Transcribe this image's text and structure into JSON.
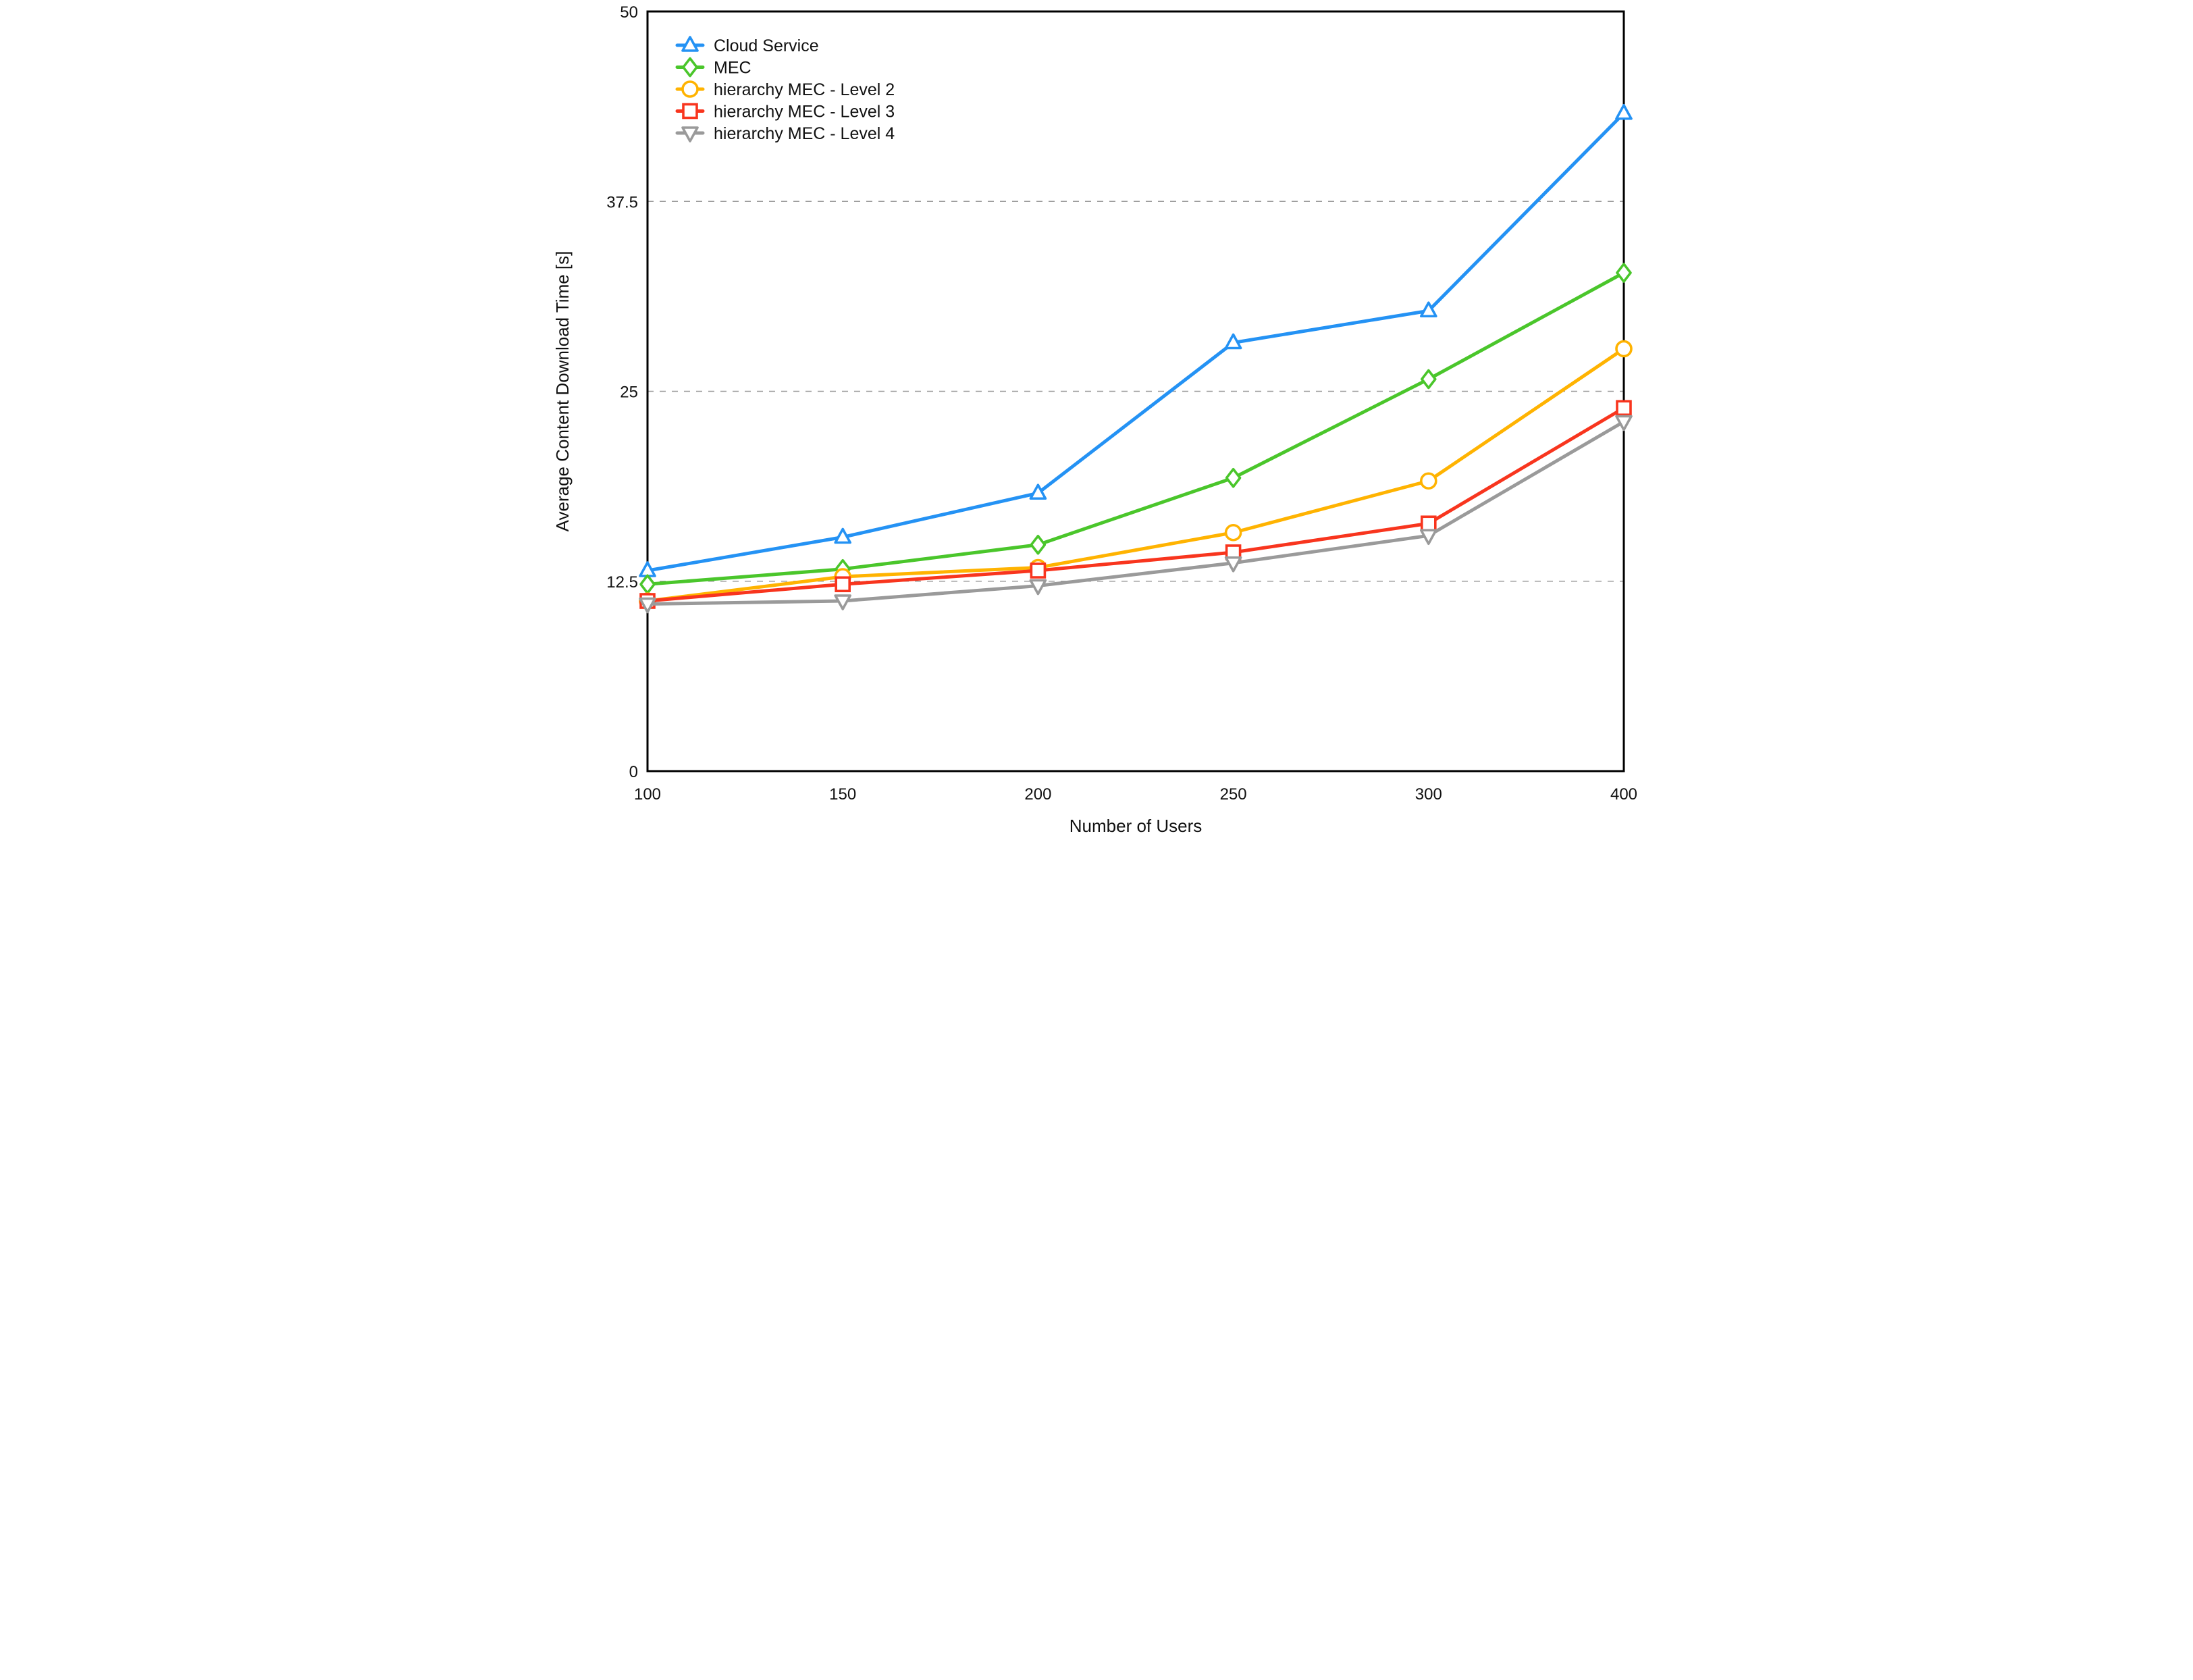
{
  "chart_data": {
    "type": "line",
    "title": "",
    "xlabel": "Number of Users",
    "ylabel": "Average Content Download Time  [s]",
    "x_categories": [
      "100",
      "150",
      "200",
      "250",
      "300",
      "400"
    ],
    "y_ticks": [
      0,
      12.5,
      25,
      37.5,
      50
    ],
    "y_tick_labels": [
      "0",
      "12.5",
      "25",
      "37.5",
      "50"
    ],
    "ylim": [
      0,
      50
    ],
    "grid": "horizontal dashed gridlines at 12.5, 25 and 37.5",
    "legend_position": "top-left inside plot",
    "axis_color": "#000000",
    "gridline_color": "#9b9b9b",
    "series": [
      {
        "name": "Cloud Service",
        "color": "#2492f4",
        "marker": "triangle-up",
        "values": [
          13.2,
          15.4,
          18.3,
          28.2,
          30.3,
          43.3
        ]
      },
      {
        "name": "MEC",
        "color": "#4ac62b",
        "marker": "diamond",
        "values": [
          12.3,
          13.3,
          14.9,
          19.3,
          25.8,
          32.8
        ]
      },
      {
        "name": "hierarchy MEC - Level 2",
        "color": "#ffb301",
        "marker": "circle",
        "values": [
          11.2,
          12.8,
          13.4,
          15.7,
          19.1,
          27.8
        ]
      },
      {
        "name": "hierarchy MEC - Level 3",
        "color": "#f8351e",
        "marker": "square",
        "values": [
          11.2,
          12.3,
          13.2,
          14.4,
          16.3,
          23.9
        ]
      },
      {
        "name": "hierarchy MEC - Level 4",
        "color": "#9a9a9a",
        "marker": "triangle-down",
        "values": [
          11.0,
          11.2,
          12.2,
          13.7,
          15.5,
          23.0
        ]
      }
    ]
  }
}
